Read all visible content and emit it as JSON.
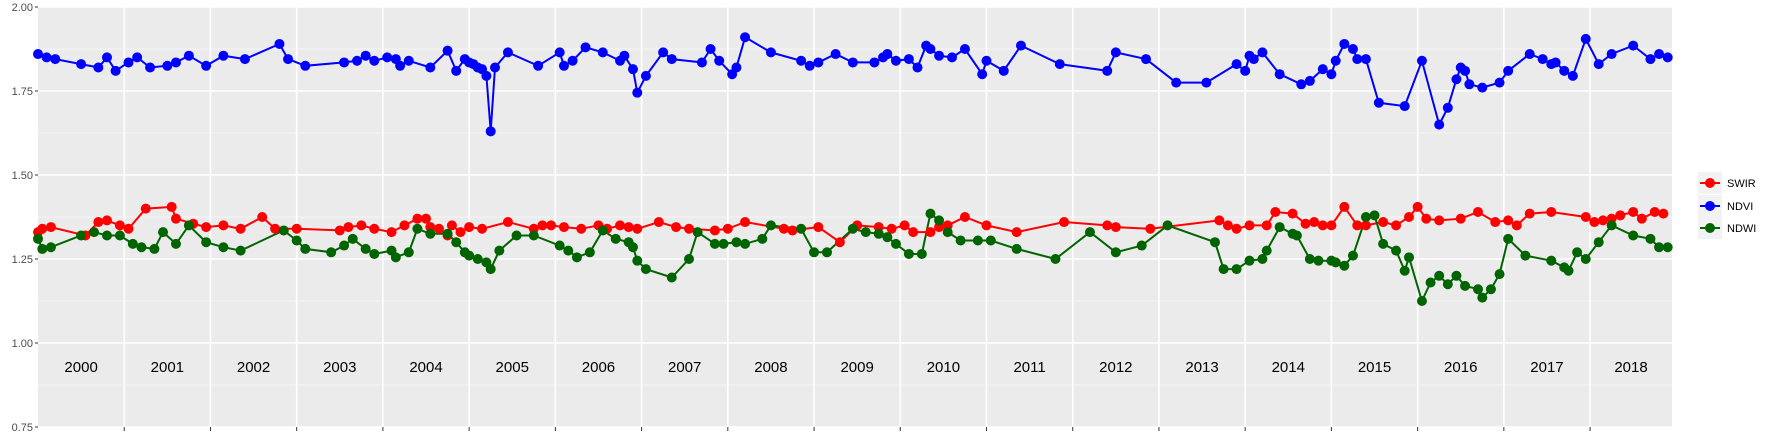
{
  "chart_data": {
    "type": "line",
    "ylim": [
      0.75,
      2.0
    ],
    "y_ticks": [
      0.75,
      1.0,
      1.25,
      1.5,
      1.75,
      2.0
    ],
    "y_tick_labels": [
      "0.75",
      "1.00",
      "1.25",
      "1.50",
      "1.75",
      "2.00"
    ],
    "xlim": [
      2000.0,
      2018.95
    ],
    "year_labels": [
      "2000",
      "2001",
      "2002",
      "2003",
      "2004",
      "2005",
      "2006",
      "2007",
      "2008",
      "2009",
      "2010",
      "2011",
      "2012",
      "2013",
      "2014",
      "2015",
      "2016",
      "2017",
      "2018"
    ],
    "grid": true,
    "legend_position": "right",
    "series": [
      {
        "name": "SWIR",
        "color": "#ff0000",
        "x": [
          2000.0,
          2000.05,
          2000.15,
          2000.55,
          2000.7,
          2000.8,
          2000.95,
          2001.05,
          2001.25,
          2001.55,
          2001.6,
          2001.8,
          2001.95,
          2002.15,
          2002.35,
          2002.6,
          2002.75,
          2003.0,
          2003.5,
          2003.6,
          2003.75,
          2003.9,
          2004.1,
          2004.25,
          2004.4,
          2004.5,
          2004.55,
          2004.65,
          2004.75,
          2004.8,
          2004.9,
          2005.0,
          2005.15,
          2005.45,
          2005.75,
          2005.85,
          2005.95,
          2006.1,
          2006.3,
          2006.5,
          2006.6,
          2006.75,
          2006.85,
          2006.95,
          2007.2,
          2007.4,
          2007.55,
          2007.85,
          2008.0,
          2008.2,
          2008.65,
          2008.75,
          2009.05,
          2009.3,
          2009.5,
          2009.75,
          2009.9,
          2010.05,
          2010.15,
          2010.35,
          2010.45,
          2010.55,
          2010.75,
          2011.0,
          2011.35,
          2011.9,
          2012.4,
          2012.5,
          2012.9,
          2013.7,
          2013.8,
          2013.9,
          2014.05,
          2014.25,
          2014.35,
          2014.55,
          2014.7,
          2014.8,
          2014.9,
          2015.0,
          2015.15,
          2015.3,
          2015.4,
          2015.6,
          2015.75,
          2015.9,
          2016.0,
          2016.1,
          2016.25,
          2016.5,
          2016.7,
          2016.9,
          2017.05,
          2017.15,
          2017.3,
          2017.55,
          2017.95,
          2018.05,
          2018.15,
          2018.25,
          2018.35,
          2018.5,
          2018.6,
          2018.75,
          2018.85
        ],
        "values": [
          1.33,
          1.34,
          1.345,
          1.32,
          1.36,
          1.365,
          1.35,
          1.34,
          1.4,
          1.405,
          1.37,
          1.355,
          1.345,
          1.35,
          1.34,
          1.375,
          1.34,
          1.34,
          1.335,
          1.345,
          1.35,
          1.34,
          1.33,
          1.35,
          1.37,
          1.37,
          1.345,
          1.34,
          1.32,
          1.35,
          1.33,
          1.345,
          1.34,
          1.36,
          1.34,
          1.35,
          1.35,
          1.345,
          1.34,
          1.35,
          1.34,
          1.35,
          1.345,
          1.34,
          1.36,
          1.345,
          1.34,
          1.335,
          1.34,
          1.36,
          1.34,
          1.335,
          1.345,
          1.3,
          1.35,
          1.345,
          1.34,
          1.35,
          1.33,
          1.33,
          1.345,
          1.35,
          1.375,
          1.35,
          1.33,
          1.36,
          1.35,
          1.345,
          1.34,
          1.365,
          1.35,
          1.34,
          1.35,
          1.35,
          1.39,
          1.385,
          1.355,
          1.36,
          1.35,
          1.35,
          1.405,
          1.35,
          1.35,
          1.36,
          1.35,
          1.375,
          1.405,
          1.37,
          1.365,
          1.37,
          1.39,
          1.36,
          1.365,
          1.35,
          1.385,
          1.39,
          1.375,
          1.36,
          1.365,
          1.37,
          1.38,
          1.39,
          1.37,
          1.39,
          1.385
        ]
      },
      {
        "name": "NDVI",
        "color": "#0000ff",
        "x": [
          2000.0,
          2000.1,
          2000.2,
          2000.5,
          2000.7,
          2000.8,
          2000.9,
          2001.05,
          2001.15,
          2001.3,
          2001.5,
          2001.6,
          2001.75,
          2001.95,
          2002.15,
          2002.4,
          2002.8,
          2002.9,
          2003.1,
          2003.55,
          2003.7,
          2003.8,
          2003.9,
          2004.05,
          2004.15,
          2004.2,
          2004.3,
          2004.55,
          2004.75,
          2004.85,
          2004.95,
          2005.0,
          2005.05,
          2005.1,
          2005.15,
          2005.2,
          2005.25,
          2005.3,
          2005.45,
          2005.8,
          2006.05,
          2006.1,
          2006.2,
          2006.35,
          2006.55,
          2006.75,
          2006.8,
          2006.9,
          2006.95,
          2007.05,
          2007.25,
          2007.35,
          2007.7,
          2007.8,
          2007.9,
          2008.05,
          2008.1,
          2008.2,
          2008.5,
          2008.85,
          2008.95,
          2009.05,
          2009.25,
          2009.45,
          2009.7,
          2009.8,
          2009.85,
          2009.95,
          2010.1,
          2010.2,
          2010.3,
          2010.35,
          2010.45,
          2010.6,
          2010.75,
          2010.95,
          2011.0,
          2011.2,
          2011.4,
          2011.85,
          2012.4,
          2012.5,
          2012.85,
          2013.2,
          2013.55,
          2013.9,
          2014.0,
          2014.05,
          2014.1,
          2014.2,
          2014.4,
          2014.65,
          2014.75,
          2014.9,
          2015.0,
          2015.05,
          2015.15,
          2015.25,
          2015.3,
          2015.4,
          2015.55,
          2015.85,
          2016.05,
          2016.25,
          2016.35,
          2016.45,
          2016.5,
          2016.55,
          2016.6,
          2016.75,
          2016.95,
          2017.05,
          2017.3,
          2017.45,
          2017.55,
          2017.6,
          2017.7,
          2017.8,
          2017.95,
          2018.1,
          2018.25,
          2018.5,
          2018.7,
          2018.8,
          2018.9
        ],
        "values": [
          1.86,
          1.85,
          1.845,
          1.83,
          1.82,
          1.85,
          1.81,
          1.835,
          1.85,
          1.82,
          1.825,
          1.835,
          1.855,
          1.825,
          1.855,
          1.845,
          1.89,
          1.845,
          1.825,
          1.835,
          1.84,
          1.855,
          1.84,
          1.85,
          1.845,
          1.825,
          1.84,
          1.82,
          1.87,
          1.81,
          1.845,
          1.835,
          1.83,
          1.82,
          1.815,
          1.795,
          1.63,
          1.82,
          1.865,
          1.825,
          1.865,
          1.825,
          1.84,
          1.88,
          1.865,
          1.84,
          1.855,
          1.815,
          1.745,
          1.795,
          1.865,
          1.845,
          1.835,
          1.875,
          1.84,
          1.8,
          1.82,
          1.91,
          1.865,
          1.84,
          1.825,
          1.835,
          1.86,
          1.835,
          1.835,
          1.85,
          1.86,
          1.84,
          1.845,
          1.82,
          1.885,
          1.875,
          1.855,
          1.85,
          1.875,
          1.8,
          1.84,
          1.81,
          1.885,
          1.83,
          1.81,
          1.865,
          1.845,
          1.775,
          1.775,
          1.83,
          1.81,
          1.855,
          1.845,
          1.865,
          1.8,
          1.77,
          1.78,
          1.815,
          1.8,
          1.84,
          1.89,
          1.875,
          1.845,
          1.845,
          1.715,
          1.705,
          1.84,
          1.65,
          1.7,
          1.785,
          1.82,
          1.81,
          1.77,
          1.76,
          1.775,
          1.81,
          1.86,
          1.845,
          1.83,
          1.835,
          1.81,
          1.795,
          1.905,
          1.83,
          1.86,
          1.885,
          1.845,
          1.86,
          1.85
        ]
      },
      {
        "name": "NDWI",
        "color": "#006400",
        "x": [
          2000.0,
          2000.05,
          2000.15,
          2000.5,
          2000.65,
          2000.8,
          2000.95,
          2001.1,
          2001.2,
          2001.35,
          2001.45,
          2001.6,
          2001.75,
          2001.95,
          2002.15,
          2002.35,
          2002.85,
          2003.0,
          2003.1,
          2003.4,
          2003.55,
          2003.65,
          2003.8,
          2003.9,
          2004.1,
          2004.15,
          2004.3,
          2004.4,
          2004.55,
          2004.75,
          2004.85,
          2004.95,
          2005.0,
          2005.1,
          2005.2,
          2005.25,
          2005.35,
          2005.55,
          2005.75,
          2006.05,
          2006.15,
          2006.25,
          2006.4,
          2006.55,
          2006.7,
          2006.85,
          2006.9,
          2006.95,
          2007.05,
          2007.35,
          2007.55,
          2007.65,
          2007.85,
          2007.95,
          2008.1,
          2008.2,
          2008.4,
          2008.5,
          2008.85,
          2009.0,
          2009.15,
          2009.45,
          2009.6,
          2009.75,
          2009.85,
          2009.95,
          2010.1,
          2010.25,
          2010.35,
          2010.45,
          2010.55,
          2010.7,
          2010.9,
          2011.05,
          2011.35,
          2011.8,
          2012.2,
          2012.5,
          2012.8,
          2013.1,
          2013.65,
          2013.75,
          2013.9,
          2014.05,
          2014.2,
          2014.25,
          2014.4,
          2014.55,
          2014.6,
          2014.75,
          2014.85,
          2015.0,
          2015.05,
          2015.15,
          2015.25,
          2015.4,
          2015.5,
          2015.6,
          2015.75,
          2015.85,
          2015.9,
          2016.05,
          2016.15,
          2016.25,
          2016.35,
          2016.45,
          2016.55,
          2016.7,
          2016.75,
          2016.85,
          2016.95,
          2017.05,
          2017.25,
          2017.55,
          2017.7,
          2017.75,
          2017.85,
          2017.95,
          2018.1,
          2018.25,
          2018.5,
          2018.7,
          2018.8,
          2018.9
        ],
        "values": [
          1.31,
          1.28,
          1.285,
          1.32,
          1.33,
          1.32,
          1.32,
          1.295,
          1.285,
          1.28,
          1.33,
          1.295,
          1.35,
          1.3,
          1.285,
          1.275,
          1.335,
          1.305,
          1.28,
          1.27,
          1.29,
          1.31,
          1.28,
          1.265,
          1.275,
          1.255,
          1.27,
          1.34,
          1.325,
          1.325,
          1.3,
          1.27,
          1.26,
          1.25,
          1.24,
          1.22,
          1.275,
          1.32,
          1.32,
          1.29,
          1.275,
          1.255,
          1.27,
          1.335,
          1.31,
          1.3,
          1.285,
          1.245,
          1.22,
          1.195,
          1.25,
          1.33,
          1.295,
          1.295,
          1.3,
          1.295,
          1.31,
          1.35,
          1.34,
          1.27,
          1.27,
          1.34,
          1.33,
          1.325,
          1.315,
          1.295,
          1.265,
          1.265,
          1.385,
          1.365,
          1.33,
          1.305,
          1.305,
          1.305,
          1.28,
          1.25,
          1.33,
          1.27,
          1.29,
          1.35,
          1.3,
          1.22,
          1.22,
          1.245,
          1.25,
          1.275,
          1.345,
          1.325,
          1.32,
          1.25,
          1.245,
          1.245,
          1.24,
          1.23,
          1.26,
          1.375,
          1.38,
          1.295,
          1.275,
          1.215,
          1.255,
          1.125,
          1.18,
          1.2,
          1.175,
          1.2,
          1.17,
          1.16,
          1.135,
          1.16,
          1.205,
          1.31,
          1.26,
          1.245,
          1.225,
          1.215,
          1.27,
          1.25,
          1.3,
          1.35,
          1.32,
          1.31,
          1.285,
          1.285
        ]
      }
    ]
  }
}
